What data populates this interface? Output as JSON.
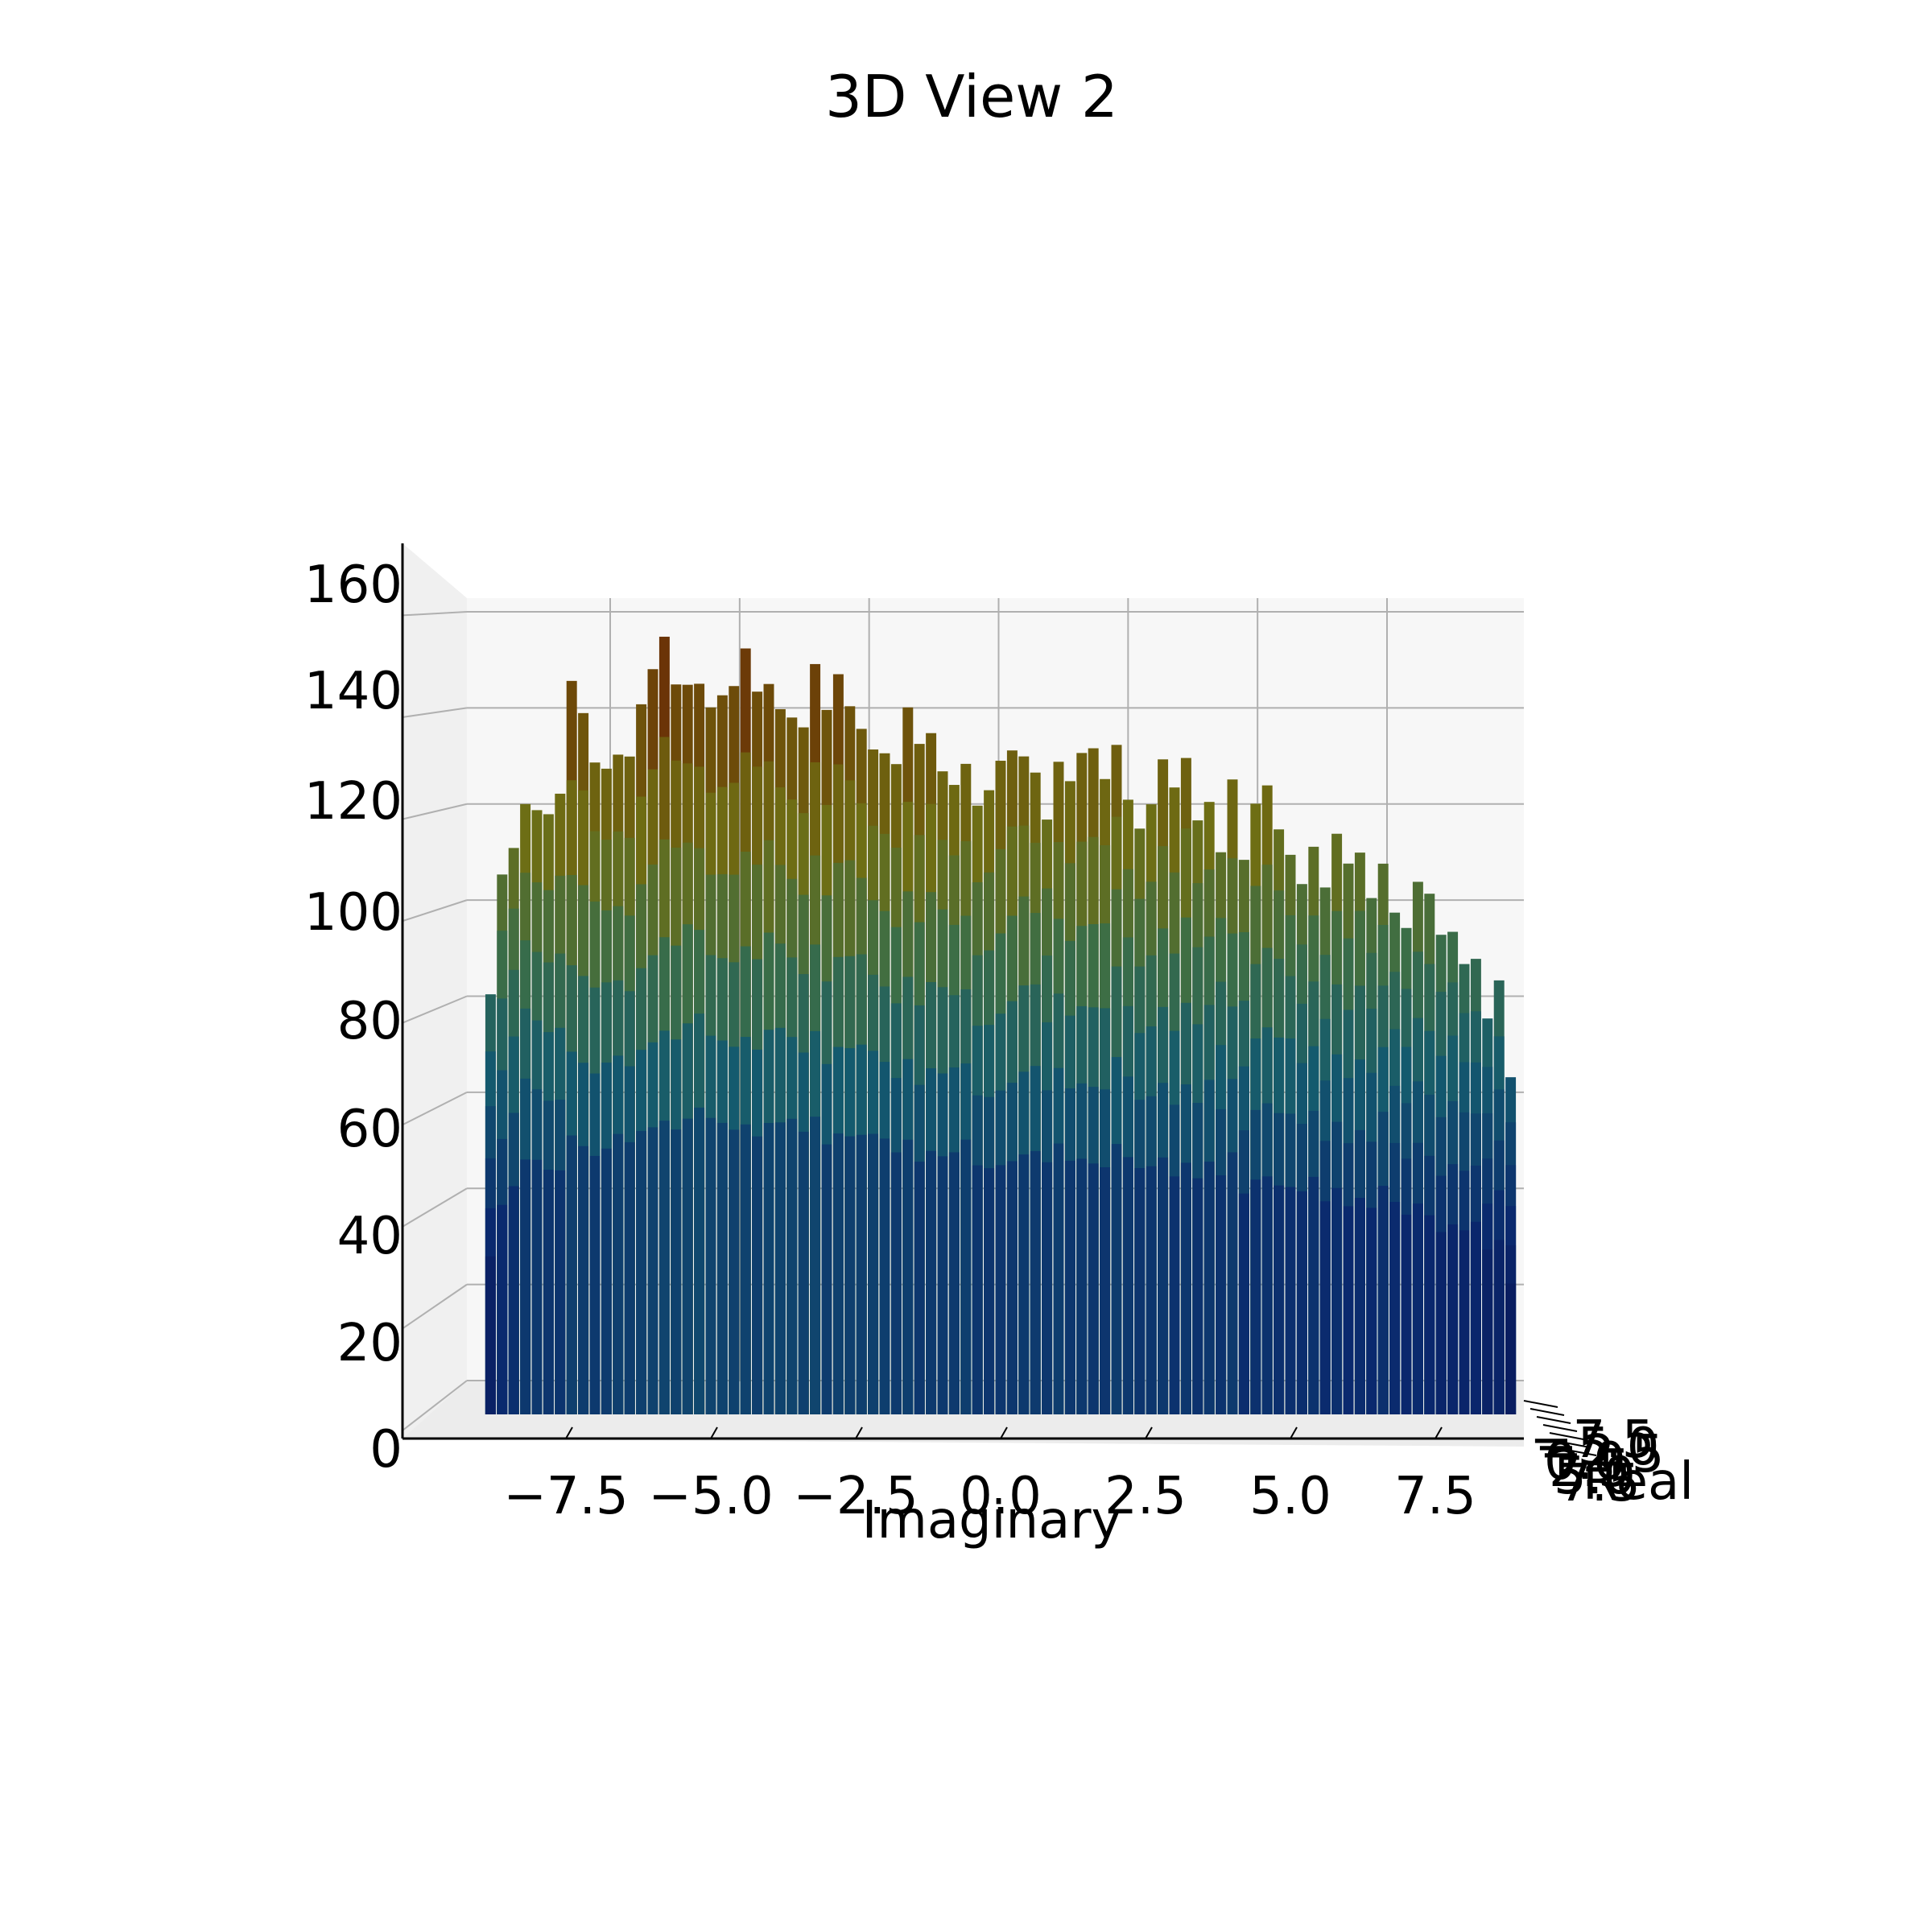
{
  "chart_data": {
    "type": "bar3d",
    "title": "3D View 2",
    "xlabel": "Imaginary",
    "ylabel": "Real",
    "zlabel": "",
    "colormap": "gist_earth-like (dark navy -> teal -> olive -> brown)",
    "x_ticks": [
      "−7.5",
      "−5.0",
      "−2.5",
      "0.0",
      "2.5",
      "5.0",
      "7.5"
    ],
    "y_ticks": [
      "−7.5",
      "−5.0",
      "−2.5",
      "0.0",
      "2.5",
      "5.0",
      "7.5"
    ],
    "z_ticks": [
      "0",
      "20",
      "40",
      "60",
      "80",
      "100",
      "120",
      "140",
      "160"
    ],
    "xlim": [
      -9.5,
      9.5
    ],
    "zlim": [
      0,
      165
    ],
    "grid": true,
    "x": [
      -8.8,
      -8.6,
      -8.4,
      -8.2,
      -8.0,
      -7.8,
      -7.6,
      -7.4,
      -7.2,
      -7.0,
      -6.8,
      -6.6,
      -6.4,
      -6.2,
      -6.0,
      -5.8,
      -5.6,
      -5.4,
      -5.2,
      -5.0,
      -4.8,
      -4.6,
      -4.4,
      -4.2,
      -4.0,
      -3.8,
      -3.6,
      -3.4,
      -3.2,
      -3.0,
      -2.8,
      -2.6,
      -2.4,
      -2.2,
      -2.0,
      -1.8,
      -1.6,
      -1.4,
      -1.2,
      -1.0,
      -0.8,
      -0.6,
      -0.4,
      -0.2,
      0.0,
      0.2,
      0.4,
      0.6,
      0.8,
      1.0,
      1.2,
      1.4,
      1.6,
      1.8,
      2.0,
      2.2,
      2.4,
      2.6,
      2.8,
      3.0,
      3.2,
      3.4,
      3.6,
      3.8,
      4.0,
      4.2,
      4.4,
      4.6,
      4.8,
      5.0,
      5.2,
      5.4,
      5.6,
      5.8,
      6.0,
      6.2,
      6.4,
      6.6,
      6.8,
      7.0,
      7.2,
      7.4,
      7.6,
      7.8,
      8.0,
      8.2,
      8.4,
      8.6,
      8.8
    ],
    "max_height": [
      85,
      112,
      120,
      131,
      130,
      128,
      130,
      150,
      144,
      137,
      138,
      142,
      141,
      150,
      154,
      158,
      152,
      155,
      157,
      152,
      153,
      152,
      156,
      149,
      154,
      151,
      150,
      147,
      158,
      145,
      151,
      148,
      146,
      143,
      142,
      138,
      147,
      136,
      141,
      136,
      135,
      140,
      130,
      131,
      134,
      136,
      138,
      137,
      128,
      140,
      134,
      137,
      135,
      132,
      142,
      132,
      126,
      130,
      137,
      128,
      135,
      125,
      131,
      121,
      136,
      117,
      126,
      128,
      122,
      119,
      114,
      122,
      112,
      121,
      112,
      116,
      109,
      118,
      108,
      104,
      112,
      107,
      98,
      101,
      96,
      98,
      85,
      92,
      70
    ]
  }
}
